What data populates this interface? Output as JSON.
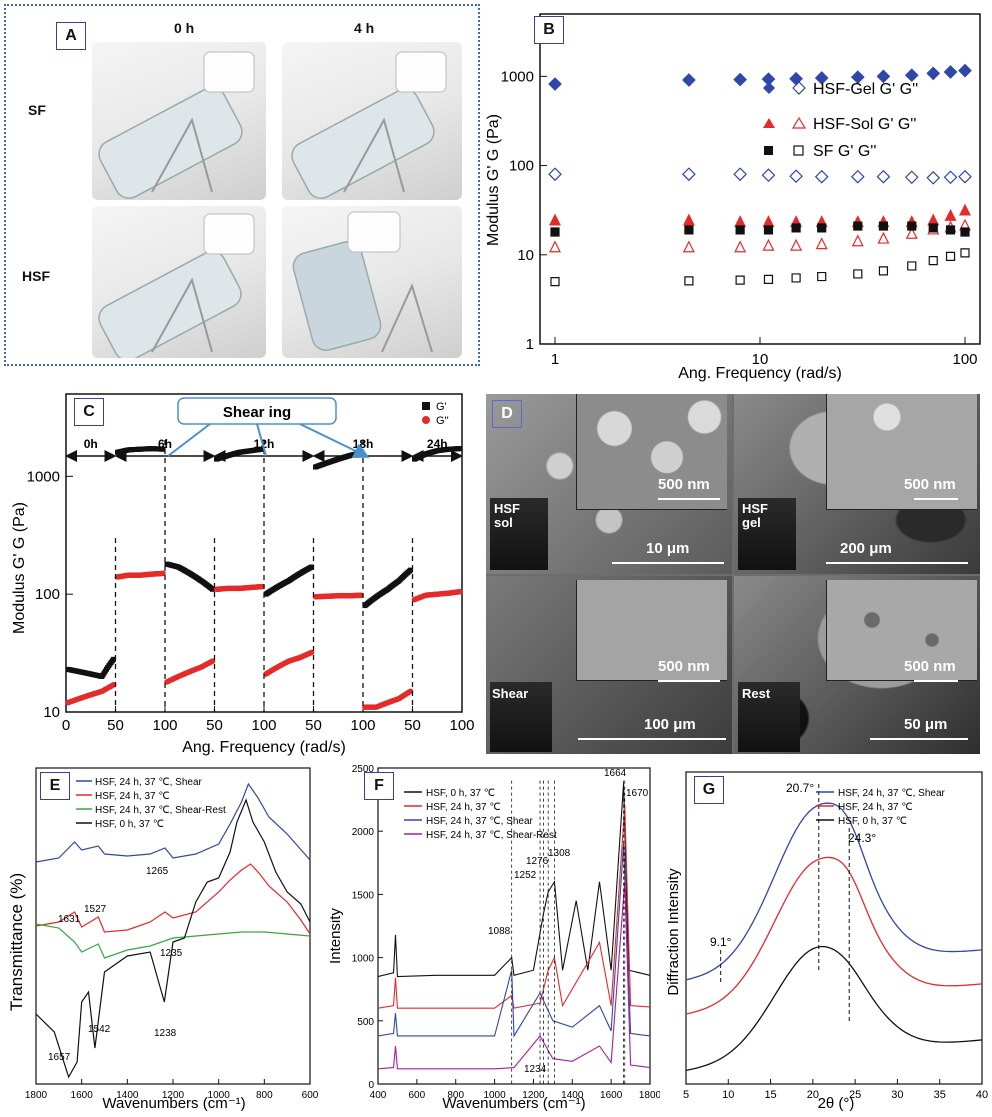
{
  "panel_a": {
    "label": "A",
    "col_labels": [
      "0 h",
      "4 h"
    ],
    "row_labels": [
      "SF",
      "HSF"
    ]
  },
  "panel_b": {
    "label": "B",
    "ylabel": "Modulus G' G (Pa)",
    "xlabel": "Ang. Frequency (rad/s)",
    "xticks": [
      "1",
      "10",
      "100"
    ],
    "yticks": [
      "1",
      "10",
      "100",
      "1000"
    ],
    "legend": [
      "HSF-Gel G' G''",
      "HSF-Sol G' G''",
      "SF G' G''"
    ]
  },
  "panel_c": {
    "label": "C",
    "ylabel": "Modulus G' G (Pa)",
    "xlabel": "Ang. Frequency (rad/s)",
    "xticks": [
      "0",
      "50",
      "100",
      "50",
      "100",
      "50",
      "100",
      "50",
      "100",
      "50",
      "100"
    ],
    "yticks": [
      "10",
      "100",
      "1000"
    ],
    "segments": [
      "0h",
      "6h",
      "12h",
      "18h",
      "24h"
    ],
    "shearing": "Shear ing",
    "legend": [
      "G'",
      "G''"
    ]
  },
  "panel_d": {
    "label": "D",
    "scale_labels": [
      "500 nm",
      "10 μm",
      "500 nm",
      "200 μm",
      "500 nm",
      "100 μm",
      "500 nm",
      "50 μm"
    ],
    "vial_labels": [
      "HSF\nsol",
      "HSF\ngel",
      "Shear",
      "Rest"
    ]
  },
  "panel_e": {
    "label": "E",
    "ylabel": "Transmittance (%)",
    "xlabel": "Wavenumbers (cm⁻¹)",
    "xticks": [
      "1800",
      "1600",
      "1400",
      "1200",
      "1000",
      "800",
      "600"
    ],
    "legend": [
      "HSF, 24 h, 37 ℃, Shear",
      "HSF, 24 h, 37 ℃",
      "HSF, 24 h, 37 ℃, Shear-Rest",
      "HSF, 0 h, 37 ℃"
    ],
    "annotations": [
      "1631",
      "1527",
      "1265",
      "1235",
      "1238",
      "1657",
      "1542"
    ]
  },
  "panel_f": {
    "label": "F",
    "ylabel": "Intensity",
    "xlabel": "Wavenumbers (cm⁻¹)",
    "xticks": [
      "400",
      "600",
      "800",
      "1000",
      "1200",
      "1400",
      "1600",
      "1800"
    ],
    "yticks": [
      "0",
      "500",
      "1000",
      "1500",
      "2000",
      "2500"
    ],
    "legend": [
      "HSF, 0 h, 37 ℃",
      "HSF, 24 h, 37 ℃",
      "HSF, 24 h, 37 ℃, Shear",
      "HSF, 24 h, 37 ℃, Shear-Rest"
    ],
    "annotations": [
      "1664",
      "1670",
      "1276",
      "1308",
      "1252",
      "1088",
      "1234"
    ]
  },
  "panel_g": {
    "label": "G",
    "ylabel": "Diffraction Intensity",
    "xlabel": "2θ (°)",
    "xticks": [
      "5",
      "10",
      "15",
      "20",
      "25",
      "30",
      "35",
      "40"
    ],
    "legend": [
      "HSF, 24 h, 37 ℃, Shear",
      "HSF, 24 h, 37 ℃",
      "HSF, 0 h, 37 ℃"
    ],
    "annotations": [
      "20.7°",
      "24.3°",
      "9.1°"
    ]
  },
  "colors": {
    "blue": "#2f47a8",
    "red": "#e52a2a",
    "green": "#3aa63a",
    "black": "#111111",
    "purple": "#a020a0",
    "accent": "#3a3f9a"
  },
  "chart_data": [
    {
      "type": "scatter",
      "panel": "B",
      "xlabel": "Ang. Frequency (rad/s)",
      "ylabel": "Modulus G' G (Pa)",
      "x_scale": "log",
      "y_scale": "log",
      "xlim": [
        1,
        100
      ],
      "ylim": [
        1,
        5000
      ],
      "series": [
        {
          "name": "HSF-Gel G'",
          "values": [
            [
              1,
              820
            ],
            [
              4.5,
              910
            ],
            [
              8,
              920
            ],
            [
              11,
              930
            ],
            [
              15,
              940
            ],
            [
              20,
              960
            ],
            [
              30,
              980
            ],
            [
              40,
              1000
            ],
            [
              55,
              1030
            ],
            [
              70,
              1080
            ],
            [
              85,
              1120
            ],
            [
              100,
              1160
            ]
          ]
        },
        {
          "name": "HSF-Gel G''",
          "values": [
            [
              1,
              80
            ],
            [
              4.5,
              80
            ],
            [
              8,
              80
            ],
            [
              11,
              78
            ],
            [
              15,
              76
            ],
            [
              20,
              75
            ],
            [
              30,
              75
            ],
            [
              40,
              75
            ],
            [
              55,
              74
            ],
            [
              70,
              73
            ],
            [
              85,
              74
            ],
            [
              100,
              75
            ]
          ]
        },
        {
          "name": "HSF-Sol G'",
          "values": [
            [
              1,
              24
            ],
            [
              4.5,
              24
            ],
            [
              8,
              23
            ],
            [
              11,
              23
            ],
            [
              15,
              23
            ],
            [
              20,
              23
            ],
            [
              30,
              23
            ],
            [
              40,
              23
            ],
            [
              55,
              23
            ],
            [
              70,
              24
            ],
            [
              85,
              27
            ],
            [
              100,
              31
            ]
          ]
        },
        {
          "name": "HSF-Sol G''",
          "values": [
            [
              1,
              12
            ],
            [
              4.5,
              12
            ],
            [
              8,
              12
            ],
            [
              11,
              12.5
            ],
            [
              15,
              12.5
            ],
            [
              20,
              13
            ],
            [
              30,
              14
            ],
            [
              40,
              15
            ],
            [
              55,
              17
            ],
            [
              70,
              19
            ],
            [
              85,
              20
            ],
            [
              100,
              21
            ]
          ]
        },
        {
          "name": "SF G'",
          "values": [
            [
              1,
              18
            ],
            [
              4.5,
              19
            ],
            [
              8,
              19
            ],
            [
              11,
              19
            ],
            [
              15,
              20
            ],
            [
              20,
              20
            ],
            [
              30,
              21
            ],
            [
              40,
              21
            ],
            [
              55,
              21
            ],
            [
              70,
              20
            ],
            [
              85,
              19
            ],
            [
              100,
              18
            ]
          ]
        },
        {
          "name": "SF G''",
          "values": [
            [
              1,
              5
            ],
            [
              4.5,
              5.1
            ],
            [
              8,
              5.2
            ],
            [
              11,
              5.3
            ],
            [
              15,
              5.5
            ],
            [
              20,
              5.7
            ],
            [
              30,
              6.1
            ],
            [
              40,
              6.6
            ],
            [
              55,
              7.5
            ],
            [
              70,
              8.6
            ],
            [
              85,
              9.6
            ],
            [
              100,
              10.5
            ]
          ]
        }
      ]
    },
    {
      "type": "scatter",
      "panel": "C",
      "xlabel": "Ang. Frequency (rad/s)",
      "ylabel": "Modulus G' G (Pa)",
      "y_scale": "log",
      "ylim": [
        10,
        5000
      ],
      "segments": [
        "0h",
        "6h",
        "12h",
        "18h",
        "24h"
      ],
      "series": [
        {
          "name": "G'",
          "segments": [
            [
              23,
              22,
              21,
              20,
              28
            ],
            [
              1600,
              1680,
              1700,
              1720,
              1700
            ],
            [
              180,
              170,
              150,
              130,
              110
            ],
            [
              1400,
              1500,
              1600,
              1650,
              1700
            ],
            [
              100,
              115,
              130,
              150,
              170
            ],
            [
              1200,
              1300,
              1400,
              1500,
              1580
            ],
            [
              80,
              95,
              110,
              130,
              160
            ],
            [
              1400,
              1550,
              1650,
              1700,
              1720
            ]
          ]
        },
        {
          "name": "G''",
          "segments": [
            [
              12,
              13,
              14,
              15,
              17
            ],
            [
              140,
              145,
              145,
              148,
              150
            ],
            [
              18,
              20,
              22,
              24,
              27
            ],
            [
              110,
              112,
              112,
              114,
              116
            ],
            [
              21,
              24,
              27,
              29,
              32
            ],
            [
              95,
              96,
              97,
              97,
              98
            ],
            [
              11,
              11,
              12,
              13,
              15
            ],
            [
              90,
              98,
              100,
              102,
              105
            ]
          ]
        }
      ]
    },
    {
      "type": "line",
      "panel": "E",
      "xlabel": "Wavenumbers (cm-1)",
      "ylabel": "Transmittance (%)",
      "xlim": [
        1800,
        600
      ],
      "series": [
        {
          "name": "HSF, 24 h, 37 ℃, Shear",
          "x": [
            1800,
            1700,
            1631,
            1600,
            1527,
            1500,
            1400,
            1300,
            1235,
            1200,
            1100,
            1000,
            900,
            870,
            800,
            700,
            600
          ],
          "values": [
            85,
            80,
            62,
            72,
            66,
            72,
            74,
            78,
            70,
            84,
            90,
            96,
            113,
            118,
            105,
            98,
            84
          ]
        }
      ]
    }
  ]
}
